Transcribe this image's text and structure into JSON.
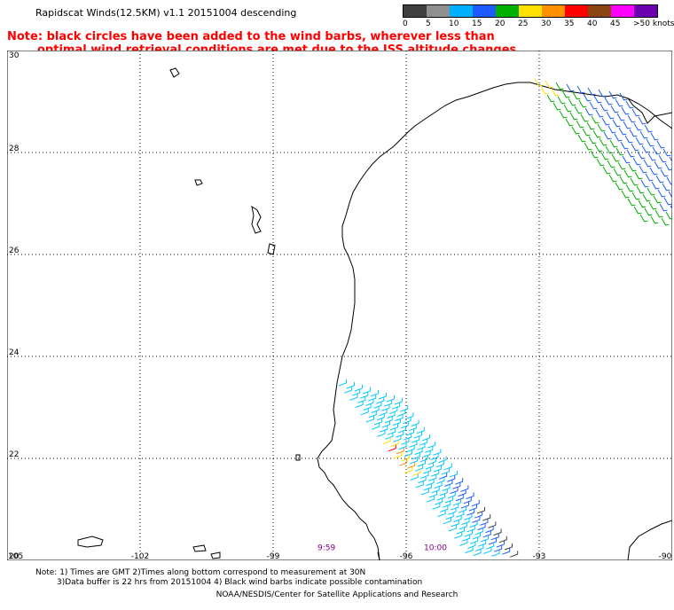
{
  "header": {
    "title": "Rapidscat Winds(12.5KM) v1.1 20151004 descending"
  },
  "note": {
    "line1": "Note: black circles have been added to the wind barbs, wherever less than",
    "line2": "optimal wind retrieval conditions are met due to the ISS altitude changes."
  },
  "legend": {
    "labels": [
      "0",
      "5",
      "10",
      "15",
      "20",
      "25",
      "30",
      "35",
      "40",
      "45",
      ">50 knots"
    ],
    "colors": [
      "#404040",
      "#909090",
      "#00b0ff",
      "#1e5cff",
      "#00b000",
      "#ffe000",
      "#ff9000",
      "#ff0000",
      "#8b4513",
      "#ff00ff",
      "#6b00b0"
    ]
  },
  "map": {
    "lon_labels": [
      "-105",
      "-102",
      "-99",
      "-96",
      "-93",
      "-90"
    ],
    "lat_labels": [
      "20",
      "22",
      "24",
      "26",
      "28",
      "30"
    ],
    "times": [
      {
        "label": "9:59",
        "lon": -98.0,
        "lat": 20.2
      },
      {
        "label": "10:00",
        "lon": -95.6,
        "lat": 20.2
      }
    ],
    "time_color": "#800080"
  },
  "footer": {
    "line1": "Note: 1) Times are GMT 2)Times along bottom correspond to measurement at 30N",
    "line2": "3)Data buffer is 22 hrs from 20151004 4) Black wind barbs indicate possible contamination",
    "credit": "NOAA/NESDIS/Center for Satellite Applications and Research"
  }
}
